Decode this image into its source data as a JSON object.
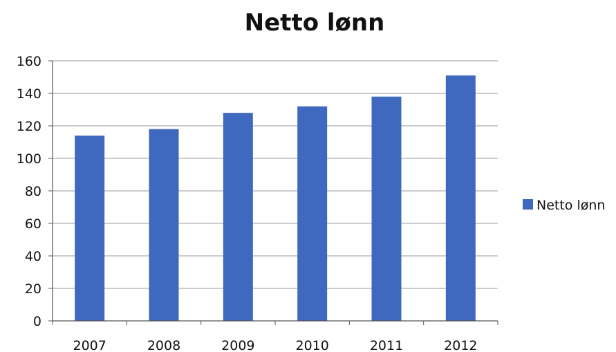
{
  "chart_data": {
    "type": "bar",
    "title": "Netto lønn",
    "xlabel": "",
    "ylabel": "",
    "categories": [
      "2007",
      "2008",
      "2009",
      "2010",
      "2011",
      "2012"
    ],
    "series": [
      {
        "name": "Netto lønn",
        "values": [
          114,
          118,
          128,
          132,
          138,
          151
        ],
        "color": "#3f69be"
      }
    ],
    "ylim": [
      0,
      160
    ],
    "yticks": [
      "0",
      "20",
      "40",
      "60",
      "80",
      "100",
      "120",
      "140",
      "160"
    ],
    "grid": true,
    "legend_position": "right"
  }
}
